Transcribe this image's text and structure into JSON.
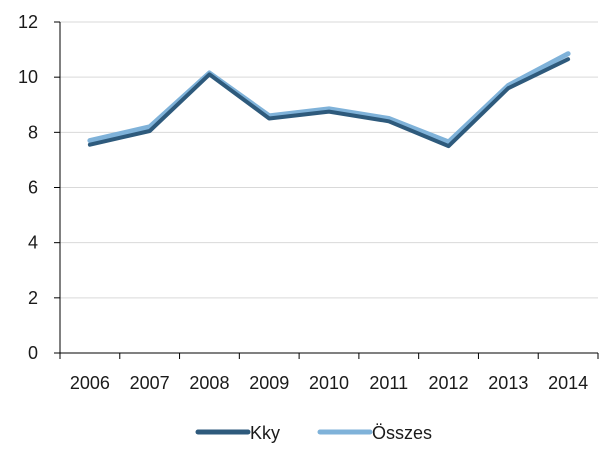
{
  "chart_data": {
    "type": "line",
    "categories": [
      "2006",
      "2007",
      "2008",
      "2009",
      "2010",
      "2011",
      "2012",
      "2013",
      "2014"
    ],
    "series": [
      {
        "name": "Kky",
        "values": [
          7.55,
          8.05,
          10.1,
          8.5,
          8.75,
          8.4,
          7.5,
          9.6,
          10.65
        ],
        "color": "#2e5a7c"
      },
      {
        "name": "Összes",
        "values": [
          7.7,
          8.2,
          10.15,
          8.6,
          8.85,
          8.5,
          7.65,
          9.7,
          10.85
        ],
        "color": "#7fb2d9"
      }
    ],
    "title": "",
    "xlabel": "",
    "ylabel": "",
    "ylim": [
      0,
      12
    ],
    "yticks": [
      0,
      2,
      4,
      6,
      8,
      10,
      12
    ],
    "grid": true,
    "legend_position": "bottom"
  }
}
